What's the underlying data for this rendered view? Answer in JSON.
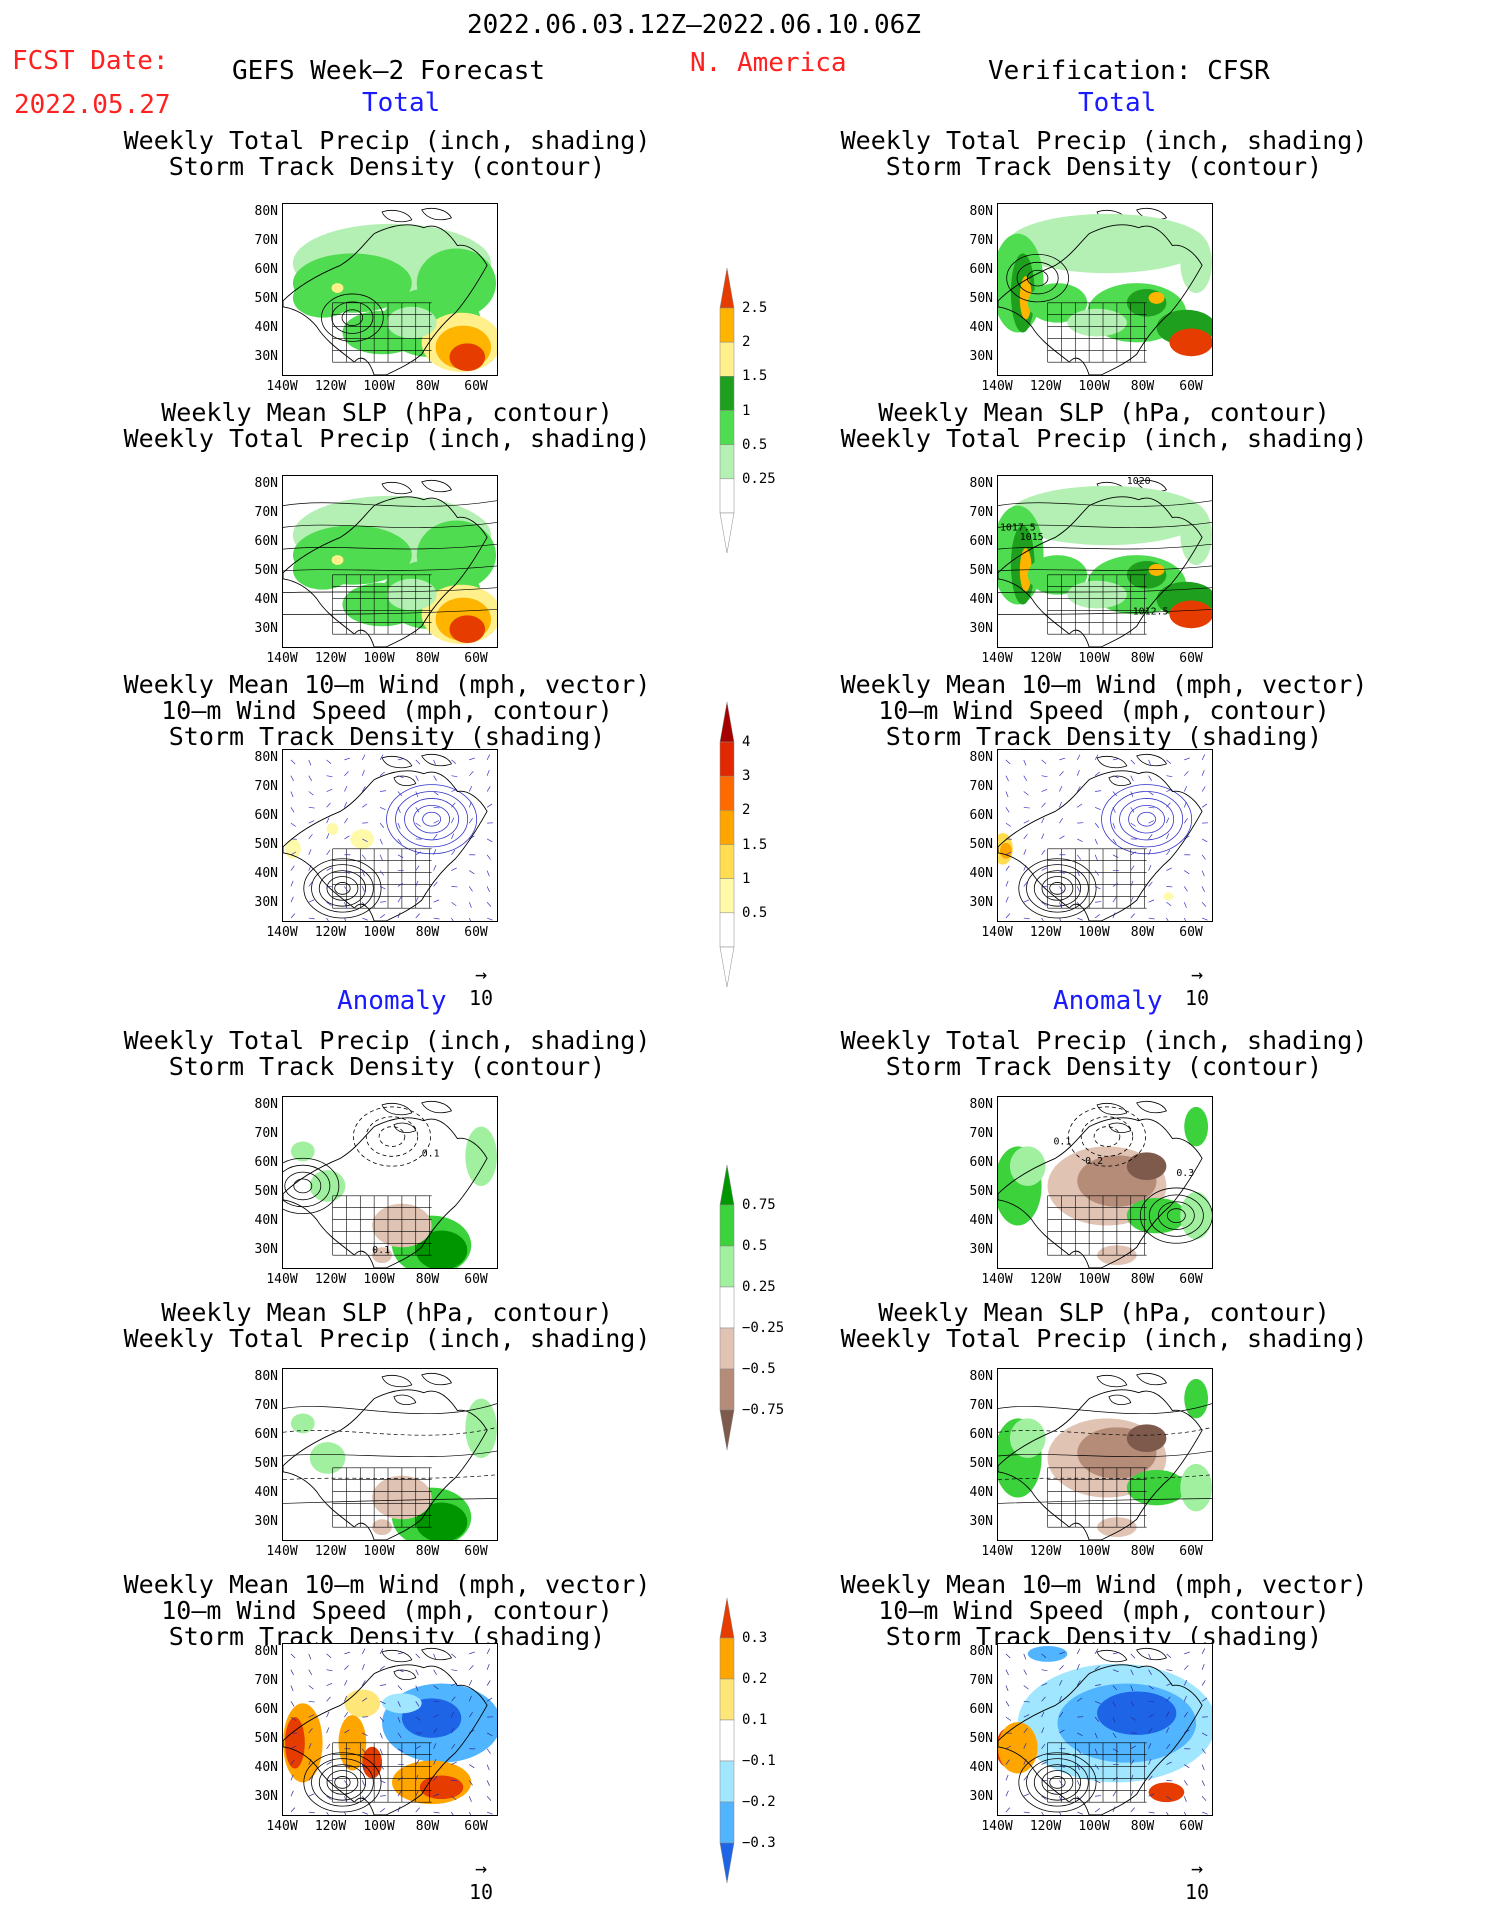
{
  "header": {
    "period": "2022.06.03.12Z–2022.06.10.06Z",
    "fcst_label": "FCST Date:",
    "fcst_date": "2022.05.27",
    "model": "GEFS Week–2 Forecast",
    "region": "N. America",
    "verification": "Verification: CFSR"
  },
  "sections": {
    "total": "Total",
    "anomaly": "Anomaly"
  },
  "panel_titles": {
    "precip_track": "Weekly Total Precip (inch, shading)\nStorm Track Density (contour)",
    "slp_precip": "Weekly Mean SLP (hPa, contour)\nWeekly Total Precip (inch, shading)",
    "wind": "Weekly Mean 10–m Wind (mph, vector)\n10–m Wind Speed (mph, contour)\nStorm Track Density (shading)"
  },
  "axes": {
    "lat": [
      "80N",
      "70N",
      "60N",
      "50N",
      "40N",
      "30N"
    ],
    "lon": [
      "140W",
      "120W",
      "100W",
      "80W",
      "60W"
    ]
  },
  "map_labels": {
    "slp_total_right": [
      "1020",
      "1017.5",
      "1015",
      "1012.5"
    ],
    "anom_precip_left": [
      "0.1",
      "0.1"
    ],
    "anom_precip_right": [
      "0.1",
      "0.2",
      "0.3"
    ]
  },
  "vector_ref": "10",
  "colorbars": {
    "total_precip": [
      "2.5",
      "2",
      "1.5",
      "1",
      "0.5",
      "0.25"
    ],
    "total_track": [
      "4",
      "3",
      "2",
      "1.5",
      "1",
      "0.5"
    ],
    "anom_precip": [
      "0.75",
      "0.5",
      "0.25",
      "−0.25",
      "−0.5",
      "−0.75"
    ],
    "anom_track": [
      "0.3",
      "0.2",
      "0.1",
      "−0.1",
      "−0.2",
      "−0.3"
    ]
  },
  "colors": {
    "precip": [
      "#b4f0b4",
      "#50dc50",
      "#1ea01e",
      "#fff08c",
      "#ffb400",
      "#e63c00"
    ],
    "track": [
      "#fffaaa",
      "#ffdc50",
      "#ffa500",
      "#ff6a00",
      "#e12800",
      "#a50000"
    ],
    "anom_precip": [
      "#009600",
      "#3cd23c",
      "#a0f0a0",
      "#ffffff",
      "#e1c3b4",
      "#b48c78",
      "#7d5a4b"
    ],
    "anom_track": [
      "#e63c00",
      "#ffa500",
      "#ffe678",
      "#ffffff",
      "#a0e6ff",
      "#50b4ff",
      "#1e64e6"
    ]
  }
}
